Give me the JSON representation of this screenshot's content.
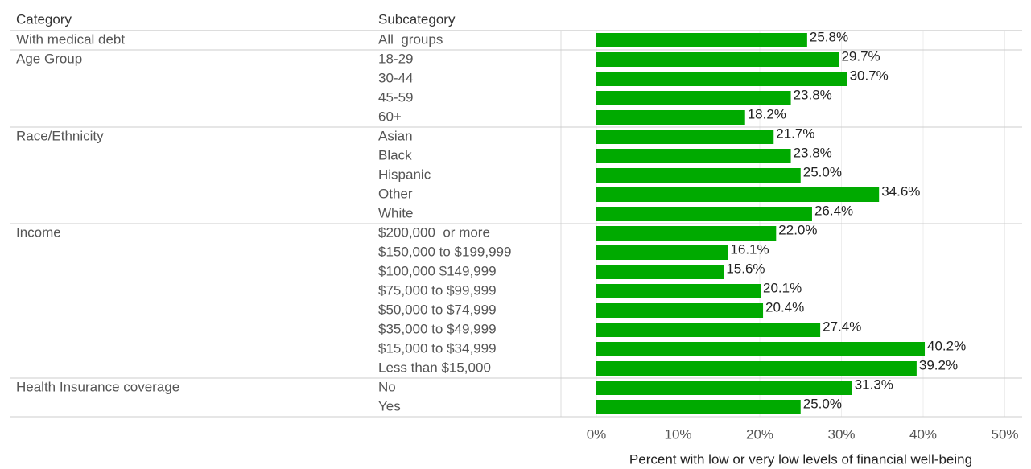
{
  "chart_data": {
    "type": "bar",
    "columns": [
      "Category",
      "Subcategory"
    ],
    "groups": [
      {
        "name": "With medical debt",
        "categories": [
          "All  groups"
        ],
        "values": [
          25.8
        ],
        "value_labels": [
          "25.8%"
        ]
      },
      {
        "name": "Age Group",
        "categories": [
          "18-29",
          "30-44",
          "45-59",
          "60+"
        ],
        "values": [
          29.7,
          30.7,
          23.8,
          18.2
        ],
        "value_labels": [
          "29.7%",
          "30.7%",
          "23.8%",
          "18.2%"
        ]
      },
      {
        "name": "Race/Ethnicity",
        "categories": [
          "Asian",
          "Black",
          "Hispanic",
          "Other",
          "White"
        ],
        "values": [
          21.7,
          23.8,
          25.0,
          34.6,
          26.4
        ],
        "value_labels": [
          "21.7%",
          "23.8%",
          "25.0%",
          "34.6%",
          "26.4%"
        ]
      },
      {
        "name": "Income",
        "categories": [
          "$200,000  or more",
          "$150,000 to $199,999",
          "$100,000 $149,999",
          "$75,000 to $99,999",
          "$50,000 to $74,999",
          "$35,000 to $49,999",
          "$15,000 to $34,999",
          "Less than $15,000"
        ],
        "values": [
          22.0,
          16.1,
          15.6,
          20.1,
          20.4,
          27.4,
          40.2,
          39.2
        ],
        "value_labels": [
          "22.0%",
          "16.1%",
          "15.6%",
          "20.1%",
          "20.4%",
          "27.4%",
          "40.2%",
          "39.2%"
        ]
      },
      {
        "name": "Health Insurance coverage",
        "categories": [
          "No",
          "Yes"
        ],
        "values": [
          31.3,
          25.0
        ],
        "value_labels": [
          "31.3%",
          "25.0%"
        ]
      }
    ],
    "color": "#00aa00",
    "xlim": [
      0,
      50
    ],
    "xticks": [
      {
        "value": 0,
        "label": "0%"
      },
      {
        "value": 10,
        "label": "10%"
      },
      {
        "value": 20,
        "label": "20%"
      },
      {
        "value": 30,
        "label": "30%"
      },
      {
        "value": 40,
        "label": "40%"
      },
      {
        "value": 50,
        "label": "50%"
      }
    ],
    "x_label": "Percent with low or very low levels of financial well-being",
    "grid": true
  }
}
